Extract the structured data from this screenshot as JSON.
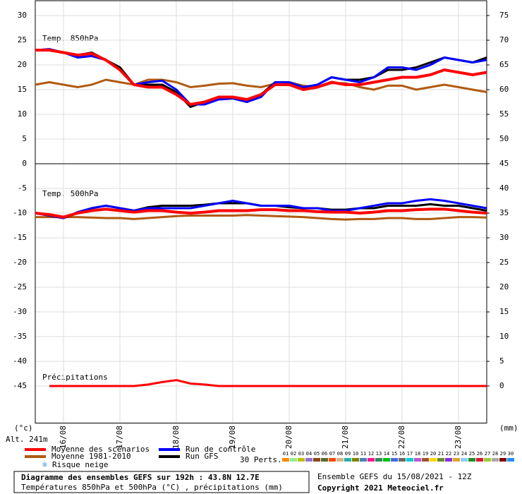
{
  "chart_data": {
    "type": "line",
    "label_850": "Temp. 850hPa",
    "label_500": "Temp. 500hPa",
    "label_precip": "Précipitations",
    "y_unit": "(°c)",
    "y2_unit": "(mm)",
    "altitude": "Alt. 241m",
    "snow_label": "Risque neige",
    "title": "Diagramme des ensembles GEFS sur 192h : 43.8N 12.7E",
    "subtitle": "Températures 850hPa et 500hPa (°C) , précipitations (mm)",
    "run_info": "Ensemble GEFS du 15/08/2021 - 12Z",
    "copyright": "Copyright 2021 Meteociel.fr",
    "grid": true,
    "xlim": [
      0,
      192
    ],
    "x": [
      0,
      6,
      12,
      18,
      24,
      30,
      36,
      42,
      48,
      54,
      60,
      66,
      72,
      78,
      84,
      90,
      96,
      102,
      108,
      114,
      120,
      126,
      132,
      138,
      144,
      150,
      156,
      162,
      168,
      174,
      180,
      186,
      192
    ],
    "xticks": [
      {
        "value": 12,
        "label": "16/08"
      },
      {
        "value": 36,
        "label": "17/08"
      },
      {
        "value": 60,
        "label": "18/08"
      },
      {
        "value": 84,
        "label": "19/08"
      },
      {
        "value": 108,
        "label": "20/08"
      },
      {
        "value": 132,
        "label": "21/08"
      },
      {
        "value": 156,
        "label": "22/08"
      },
      {
        "value": 180,
        "label": "23/08"
      }
    ],
    "ylim": [
      -52.5,
      33
    ],
    "yticks": [
      30,
      25,
      20,
      15,
      10,
      5,
      0,
      -5,
      -10,
      -15,
      -20,
      -25,
      -30,
      -35,
      -40,
      -45
    ],
    "y2lim": [
      -7.5,
      78
    ],
    "y2ticks": [
      75,
      70,
      65,
      60,
      55,
      50,
      45,
      40,
      35,
      30,
      25,
      20,
      15,
      10,
      5,
      0
    ],
    "series": [
      {
        "name": "Moyenne des scénarios",
        "color": "#ff0000",
        "t850": [
          23,
          23,
          22.5,
          22,
          22.3,
          21,
          19,
          16,
          15.5,
          15.5,
          14,
          12,
          12.5,
          13.5,
          13.5,
          13,
          14,
          16,
          16,
          15,
          15.5,
          16.5,
          16,
          16,
          16.5,
          17,
          17.5,
          17.5,
          18,
          19,
          18.5,
          18,
          18.5
        ],
        "t500": [
          -10,
          -10.3,
          -10.8,
          -10,
          -9.5,
          -9.2,
          -9.5,
          -9.8,
          -9.5,
          -9.5,
          -9.8,
          -10,
          -9.8,
          -9.5,
          -9.5,
          -9.5,
          -9.3,
          -9.3,
          -9.5,
          -9.5,
          -9.7,
          -9.8,
          -9.8,
          -10,
          -9.8,
          -9.5,
          -9.5,
          -9.3,
          -9.2,
          -9.2,
          -9.5,
          -9.8,
          -10
        ]
      },
      {
        "name": "Moyenne 1981-2010",
        "color": "#b05a10",
        "t850": [
          16,
          16.5,
          16,
          15.5,
          16,
          17,
          16.5,
          16,
          17,
          17,
          16.5,
          15.5,
          15.8,
          16.2,
          16.3,
          15.8,
          15.5,
          16.2,
          16.5,
          15.8,
          15.5,
          16.3,
          16.3,
          15.5,
          15,
          15.8,
          15.8,
          15,
          15.5,
          16,
          15.5,
          15,
          14.5
        ],
        "t500": [
          -10.8,
          -10.8,
          -10.8,
          -10.8,
          -10.9,
          -11,
          -11,
          -11.2,
          -11,
          -10.8,
          -10.6,
          -10.5,
          -10.5,
          -10.5,
          -10.5,
          -10.4,
          -10.5,
          -10.6,
          -10.7,
          -10.8,
          -11,
          -11.2,
          -11.3,
          -11.2,
          -11.2,
          -11,
          -11,
          -11.2,
          -11.2,
          -11,
          -10.8,
          -10.8,
          -10.9
        ]
      },
      {
        "name": "Run de contrôle",
        "color": "#0000ff",
        "t850": [
          23,
          23.2,
          22.5,
          21.5,
          21.8,
          21,
          19,
          16,
          16.5,
          16.8,
          15,
          12,
          12,
          13,
          13.2,
          12.5,
          13.5,
          16.5,
          16.5,
          15.5,
          16,
          17.5,
          17,
          16.5,
          17.5,
          19.5,
          19.5,
          19,
          20,
          21.5,
          21,
          20.5,
          21
        ],
        "t500": [
          -10,
          -10.5,
          -11,
          -9.8,
          -9,
          -8.5,
          -9,
          -9.5,
          -9,
          -9,
          -9,
          -9,
          -8.5,
          -8,
          -7.5,
          -8,
          -8.5,
          -8.5,
          -8.5,
          -9,
          -9,
          -9.5,
          -9.5,
          -9,
          -8.5,
          -8,
          -8,
          -7.5,
          -7.2,
          -7.5,
          -8,
          -8.5,
          -9
        ]
      },
      {
        "name": "Run GFS",
        "color": "#000000",
        "t850": [
          23,
          23,
          22.5,
          22,
          22.5,
          21,
          19.5,
          16,
          16,
          16,
          14.5,
          11.5,
          12.5,
          13.5,
          13.5,
          12.5,
          14,
          16.5,
          16,
          15,
          16,
          17.5,
          17,
          17,
          17.5,
          19,
          19,
          19.5,
          20.5,
          21.5,
          21,
          20.5,
          21.5
        ],
        "t500": [
          -10,
          -10.5,
          -11,
          -10,
          -9,
          -8.5,
          -9,
          -9.5,
          -8.8,
          -8.5,
          -8.5,
          -8.5,
          -8.3,
          -8,
          -8,
          -8,
          -8.5,
          -8.5,
          -8.8,
          -9,
          -9,
          -9.3,
          -9.3,
          -9,
          -9,
          -8.5,
          -8.5,
          -8.5,
          -8.2,
          -8.5,
          -8.5,
          -9,
          -9.5
        ]
      }
    ],
    "precip": {
      "color": "#ff0000",
      "values": [
        null,
        0,
        0,
        0,
        0,
        0,
        0,
        0,
        0.3,
        0.8,
        1.2,
        0.5,
        0.3,
        0,
        0,
        0,
        0,
        0,
        0,
        0,
        0,
        0,
        0,
        0,
        0,
        0,
        0,
        0,
        0,
        0,
        0,
        0,
        0
      ]
    },
    "perts_label": "30 Perts.",
    "perts": [
      {
        "label": "01",
        "color": "#ff8c00"
      },
      {
        "label": "02",
        "color": "#90ee90"
      },
      {
        "label": "03",
        "color": "#c0c000"
      },
      {
        "label": "04",
        "color": "#9370db"
      },
      {
        "label": "05",
        "color": "#8b4513"
      },
      {
        "label": "06",
        "color": "#556b2f"
      },
      {
        "label": "07",
        "color": "#ff4500"
      },
      {
        "label": "08",
        "color": "#d2b48c"
      },
      {
        "label": "09",
        "color": "#20b2aa"
      },
      {
        "label": "10",
        "color": "#808000"
      },
      {
        "label": "11",
        "color": "#4682b4"
      },
      {
        "label": "12",
        "color": "#ff1493"
      },
      {
        "label": "13",
        "color": "#2e8b57"
      },
      {
        "label": "14",
        "color": "#00c000"
      },
      {
        "label": "15",
        "color": "#4169e1"
      },
      {
        "label": "16",
        "color": "#696969"
      },
      {
        "label": "17",
        "color": "#00ced1"
      },
      {
        "label": "18",
        "color": "#ba55d3"
      },
      {
        "label": "19",
        "color": "#a0522d"
      },
      {
        "label": "20",
        "color": "#ffd700"
      },
      {
        "label": "21",
        "color": "#6b8e23"
      },
      {
        "label": "22",
        "color": "#8a2be2"
      },
      {
        "label": "23",
        "color": "#daa520"
      },
      {
        "label": "24",
        "color": "#87cefa"
      },
      {
        "label": "25",
        "color": "#228b22"
      },
      {
        "label": "26",
        "color": "#dc143c"
      },
      {
        "label": "27",
        "color": "#9acd32"
      },
      {
        "label": "28",
        "color": "#a9a9a9"
      },
      {
        "label": "29",
        "color": "#800000"
      },
      {
        "label": "30",
        "color": "#1e90ff"
      }
    ]
  }
}
